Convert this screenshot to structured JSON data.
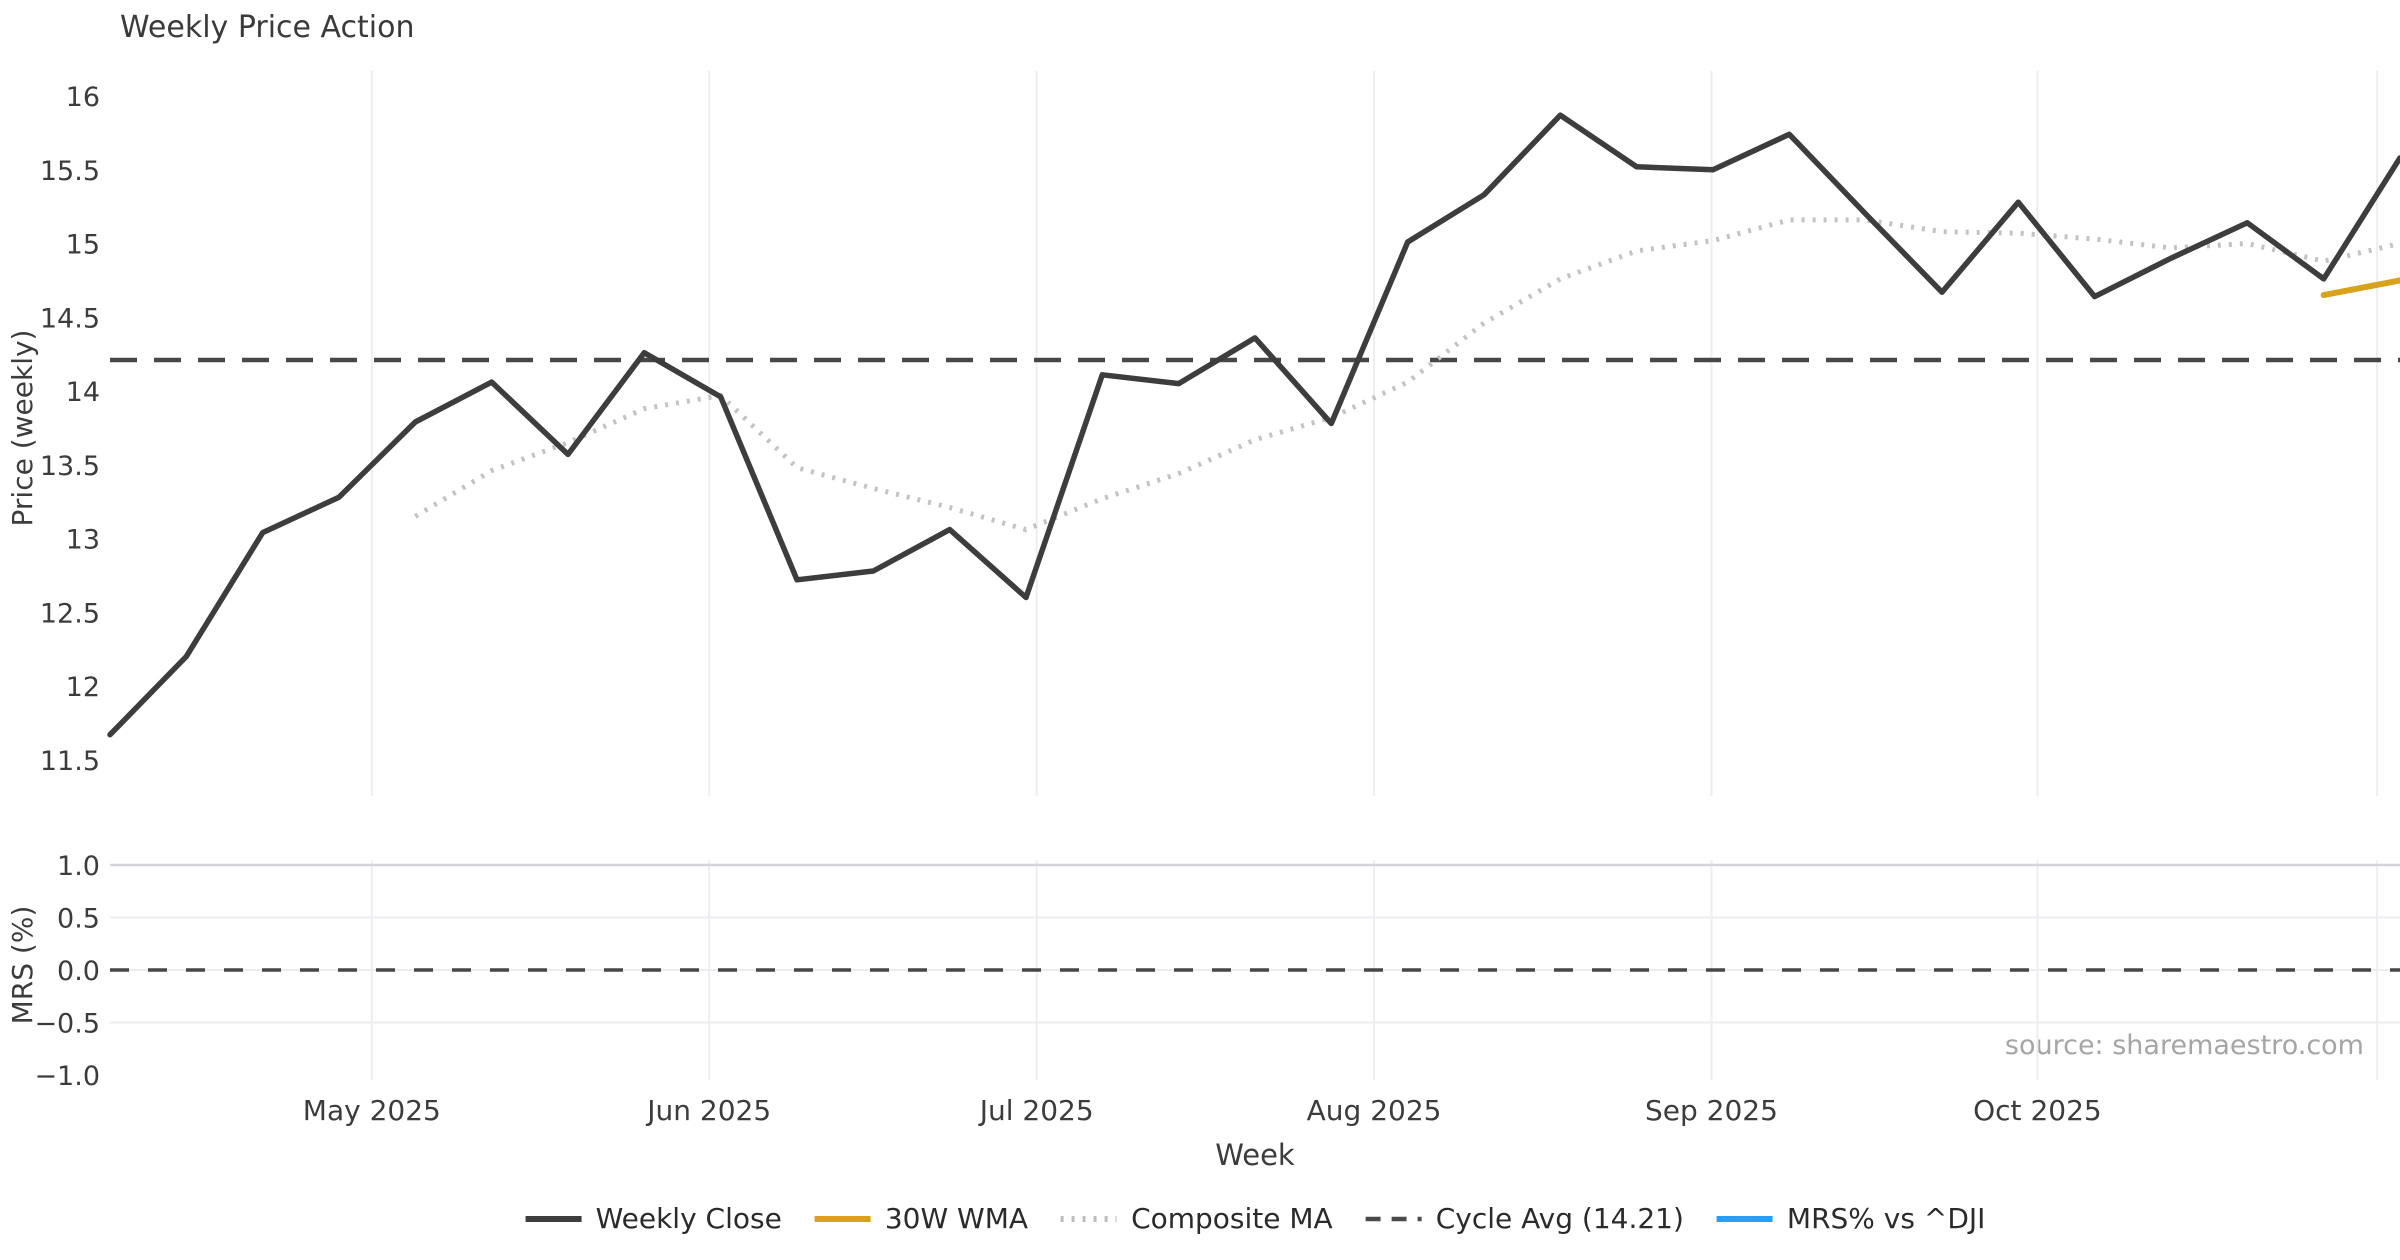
{
  "title": "Weekly Price Action",
  "source_credit": "source: sharemaestro.com",
  "colors": {
    "weekly_close": "#3d3d3d",
    "wma_30w": "#d9a21b",
    "composite_ma": "#c3c3c3",
    "cycle_avg": "#474747",
    "mrs_line": "#2a9df4",
    "gridline": "#eceef2",
    "gridline_strong": "#d4d4da",
    "tick_text": "#3c3c3c",
    "background": "#ffffff"
  },
  "legend": {
    "items": [
      {
        "label": "Weekly Close",
        "style": "solid",
        "color": "#3d3d3d"
      },
      {
        "label": "30W WMA",
        "style": "solid",
        "color": "#d9a21b"
      },
      {
        "label": "Composite MA",
        "style": "dotted",
        "color": "#bdbdbd"
      },
      {
        "label": "Cycle Avg (14.21)",
        "style": "dashed",
        "color": "#4a4a4a"
      },
      {
        "label": "MRS% vs ^DJI",
        "style": "solid",
        "color": "#2a9df4"
      }
    ]
  },
  "chart_data": [
    {
      "panel": "price",
      "type": "line",
      "title": "Weekly Price Action",
      "xlabel": "Week",
      "ylabel": "Price (weekly)",
      "ylim": [
        11.25,
        16.17
      ],
      "xlim_weeks": [
        0,
        30
      ],
      "grid": "vertical-months-only",
      "yticks": {
        "values": [
          16,
          15.5,
          15,
          14.5,
          14,
          13.5,
          13,
          12.5,
          12,
          11.5
        ],
        "labels": [
          "16",
          "15.5",
          "15",
          "14.5",
          "14",
          "13.5",
          "13",
          "12.5",
          "12",
          "11.5"
        ]
      },
      "xticks_months": [
        {
          "label": "May 2025",
          "week": 3.43
        },
        {
          "label": "Jun 2025",
          "week": 7.85
        },
        {
          "label": "Jul 2025",
          "week": 12.14
        },
        {
          "label": "Aug 2025",
          "week": 16.56
        },
        {
          "label": "Sep 2025",
          "week": 20.98
        },
        {
          "label": "Oct 2025",
          "week": 25.25
        },
        {
          "label": "",
          "week": 29.7
        }
      ],
      "cycle_avg_value": 14.21,
      "x_weeks": [
        0,
        1,
        2,
        3,
        4,
        5,
        6,
        7,
        8,
        9,
        10,
        11,
        12,
        13,
        14,
        15,
        16,
        17,
        18,
        19,
        20,
        21,
        22,
        23,
        24,
        25,
        26,
        27,
        28,
        29,
        30
      ],
      "series": [
        {
          "name": "Weekly Close",
          "color": "#3d3d3d",
          "style": "solid",
          "values": [
            11.67,
            12.2,
            13.04,
            13.28,
            13.79,
            14.06,
            13.57,
            14.26,
            13.96,
            12.72,
            12.78,
            13.06,
            12.6,
            14.11,
            14.05,
            14.36,
            13.78,
            15.01,
            15.33,
            15.87,
            15.52,
            15.5,
            15.74,
            15.2,
            14.67,
            15.28,
            14.64,
            14.9,
            15.14,
            14.76,
            15.58
          ]
        },
        {
          "name": "Composite MA",
          "color": "#c3c3c3",
          "style": "dotted",
          "values": [
            null,
            null,
            null,
            null,
            13.15,
            13.46,
            13.65,
            13.88,
            13.97,
            13.48,
            13.34,
            13.21,
            13.06,
            13.27,
            13.44,
            13.67,
            13.82,
            14.06,
            14.46,
            14.76,
            14.95,
            15.02,
            15.16,
            15.16,
            15.08,
            15.07,
            15.03,
            14.97,
            15.0,
            14.88,
            15.0
          ]
        },
        {
          "name": "30W WMA",
          "color": "#d9a21b",
          "style": "solid",
          "values": [
            null,
            null,
            null,
            null,
            null,
            null,
            null,
            null,
            null,
            null,
            null,
            null,
            null,
            null,
            null,
            null,
            null,
            null,
            null,
            null,
            null,
            null,
            null,
            null,
            null,
            null,
            null,
            null,
            null,
            14.65,
            14.75
          ]
        },
        {
          "name": "Cycle Avg (14.21)",
          "color": "#474747",
          "style": "dashed",
          "constant": 14.21
        }
      ]
    },
    {
      "panel": "mrs",
      "type": "line",
      "ylabel": "MRS (%)",
      "ylim": [
        -1.05,
        1.05
      ],
      "grid": "both",
      "yticks": {
        "values": [
          1.0,
          0.5,
          0.0,
          -0.5,
          -1.0
        ],
        "labels": [
          "1.0",
          "0.5",
          "0.0",
          "−0.5",
          "−1.0"
        ]
      },
      "zero_line": 0.0,
      "series": [
        {
          "name": "MRS% vs ^DJI",
          "color": "#2a9df4",
          "style": "solid",
          "values": []
        }
      ]
    }
  ],
  "axis_titles": {
    "price_y": "Price (weekly)",
    "mrs_y": "MRS (%)",
    "x": "Week"
  }
}
